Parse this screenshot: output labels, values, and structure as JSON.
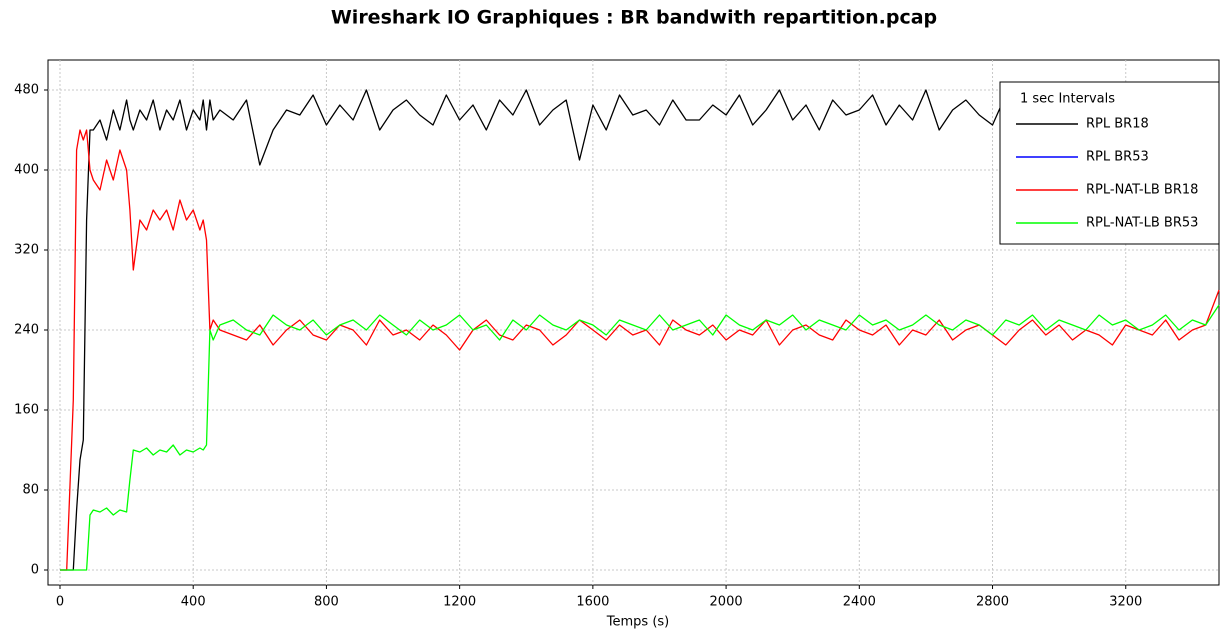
{
  "chart_data": {
    "type": "line",
    "title": "Wireshark IO Graphiques : BR bandwith repartition.pcap",
    "x_label": "Temps (s)",
    "legend_title": "1 sec Intervals",
    "legend": "upper right",
    "grid": true,
    "xlim": [
      -36,
      3480
    ],
    "ylim": [
      -15,
      510
    ],
    "xticks": [
      0,
      400,
      800,
      1200,
      1600,
      2000,
      2400,
      2800,
      3200
    ],
    "yticks": [
      0,
      80,
      160,
      240,
      320,
      400,
      480
    ],
    "x": [
      0,
      20,
      40,
      50,
      60,
      70,
      80,
      90,
      100,
      120,
      140,
      160,
      180,
      200,
      210,
      220,
      240,
      260,
      280,
      300,
      320,
      340,
      360,
      380,
      400,
      420,
      430,
      440,
      450,
      460,
      480,
      520,
      560,
      600,
      640,
      680,
      720,
      760,
      800,
      840,
      880,
      920,
      960,
      1000,
      1040,
      1080,
      1120,
      1160,
      1200,
      1240,
      1280,
      1320,
      1360,
      1400,
      1440,
      1480,
      1520,
      1560,
      1600,
      1640,
      1680,
      1720,
      1760,
      1800,
      1840,
      1880,
      1920,
      1960,
      2000,
      2040,
      2080,
      2120,
      2160,
      2200,
      2240,
      2280,
      2320,
      2360,
      2400,
      2440,
      2480,
      2520,
      2560,
      2600,
      2640,
      2680,
      2720,
      2760,
      2800,
      2840,
      2880,
      2920,
      2960,
      3000,
      3040,
      3080,
      3120,
      3160,
      3200,
      3240,
      3280,
      3320,
      3360,
      3400,
      3440,
      3480
    ],
    "series": [
      {
        "name": "RPL BR18",
        "color": "#000000",
        "values": [
          0,
          0,
          0,
          60,
          110,
          130,
          350,
          440,
          440,
          450,
          430,
          460,
          440,
          470,
          450,
          440,
          460,
          450,
          470,
          440,
          460,
          450,
          470,
          440,
          460,
          450,
          470,
          440,
          470,
          450,
          460,
          450,
          470,
          405,
          440,
          460,
          455,
          475,
          445,
          465,
          450,
          480,
          440,
          460,
          470,
          455,
          445,
          475,
          450,
          465,
          440,
          470,
          455,
          480,
          445,
          460,
          470,
          410,
          465,
          440,
          475,
          455,
          460,
          445,
          470,
          450,
          450,
          465,
          455,
          475,
          445,
          460,
          480,
          450,
          465,
          440,
          470,
          455,
          460,
          475,
          445,
          465,
          450,
          480,
          440,
          460,
          470,
          455,
          445,
          475,
          450,
          465,
          440,
          470,
          455,
          480,
          445,
          460,
          470,
          450,
          465,
          440,
          475,
          455,
          430,
          445
        ]
      },
      {
        "name": "RPL BR53",
        "color": "#0000ff",
        "values": [
          null,
          null,
          null,
          null,
          null,
          null,
          null,
          null,
          null,
          null,
          null,
          null,
          null,
          null,
          null,
          null,
          null,
          null,
          null,
          null,
          null,
          null,
          null,
          null,
          null,
          null,
          null,
          null,
          null,
          null,
          null,
          null,
          null,
          null,
          null,
          null,
          null,
          null,
          null,
          null,
          null,
          null,
          null,
          null,
          null,
          null,
          null,
          null,
          null,
          null,
          null,
          null,
          null,
          null,
          null,
          null,
          null,
          null,
          null,
          null,
          null,
          null,
          null,
          null,
          null,
          null,
          null,
          null,
          null,
          null,
          null,
          null,
          null,
          null,
          null,
          null,
          null,
          null,
          null,
          null,
          null,
          null,
          null,
          null,
          null,
          null,
          null,
          null,
          null,
          null,
          null,
          null,
          null,
          null,
          null,
          null,
          null,
          null,
          null,
          null,
          null,
          null,
          null,
          null,
          null,
          null
        ]
      },
      {
        "name": "RPL-NAT-LB BR18",
        "color": "#ff0000",
        "values": [
          0,
          0,
          170,
          420,
          440,
          430,
          440,
          400,
          390,
          380,
          410,
          390,
          420,
          400,
          360,
          300,
          350,
          340,
          360,
          350,
          360,
          340,
          370,
          350,
          360,
          340,
          350,
          330,
          240,
          250,
          240,
          235,
          230,
          245,
          225,
          240,
          250,
          235,
          230,
          245,
          240,
          225,
          250,
          235,
          240,
          230,
          245,
          235,
          220,
          240,
          250,
          235,
          230,
          245,
          240,
          225,
          235,
          250,
          240,
          230,
          245,
          235,
          240,
          225,
          250,
          240,
          235,
          245,
          230,
          240,
          235,
          250,
          225,
          240,
          245,
          235,
          230,
          250,
          240,
          235,
          245,
          225,
          240,
          235,
          250,
          230,
          240,
          245,
          235,
          225,
          240,
          250,
          235,
          245,
          230,
          240,
          235,
          225,
          245,
          240,
          235,
          250,
          230,
          240,
          245,
          280
        ]
      },
      {
        "name": "RPL-NAT-LB BR53",
        "color": "#00ff00",
        "values": [
          0,
          0,
          0,
          0,
          0,
          0,
          0,
          55,
          60,
          58,
          62,
          55,
          60,
          58,
          90,
          120,
          118,
          122,
          115,
          120,
          118,
          125,
          115,
          120,
          118,
          122,
          120,
          125,
          240,
          230,
          245,
          250,
          240,
          235,
          255,
          245,
          240,
          250,
          235,
          245,
          250,
          240,
          255,
          245,
          235,
          250,
          240,
          245,
          255,
          240,
          245,
          230,
          250,
          240,
          255,
          245,
          240,
          250,
          245,
          235,
          250,
          245,
          240,
          255,
          240,
          245,
          250,
          235,
          255,
          245,
          240,
          250,
          245,
          255,
          240,
          250,
          245,
          240,
          255,
          245,
          250,
          240,
          245,
          255,
          245,
          240,
          250,
          245,
          235,
          250,
          245,
          255,
          240,
          250,
          245,
          240,
          255,
          245,
          250,
          240,
          245,
          255,
          240,
          250,
          245,
          265
        ]
      }
    ]
  }
}
